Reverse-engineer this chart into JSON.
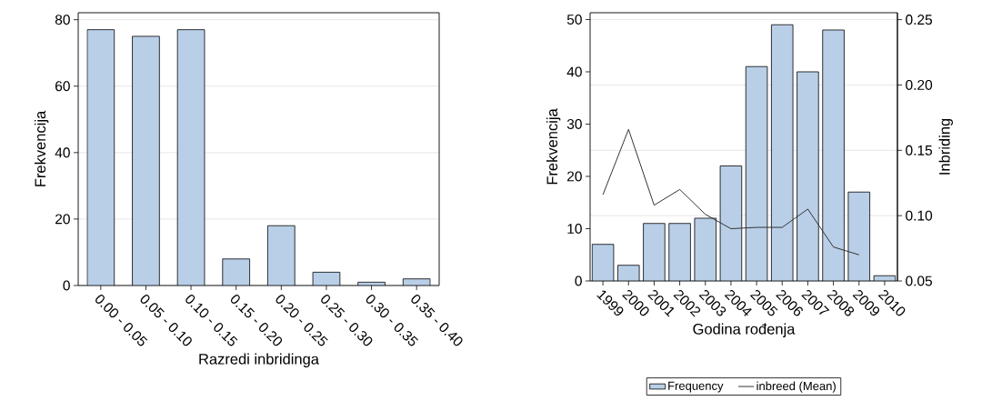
{
  "chart_data": [
    {
      "type": "bar",
      "xlabel": "Razredi inbridinga",
      "ylabel": "Frekvencija",
      "categories": [
        "0.00 - 0.05",
        "0.05 - 0.10",
        "0.10 - 0.15",
        "0.15 - 0.20",
        "0.20 - 0.25",
        "0.25 - 0.30",
        "0.30 - 0.35",
        "0.35 - 0.40"
      ],
      "values": [
        77,
        75,
        77,
        8,
        18,
        4,
        1,
        2
      ],
      "color": "#b9cfe8",
      "ylim": [
        0,
        82.1
      ],
      "yticks": [
        0,
        20,
        40,
        60,
        80
      ],
      "grid": "y"
    },
    {
      "type": "bar",
      "xlabel": "Godina rođenja",
      "ylabel": "Frekvencija",
      "y2label": "Inbriding",
      "categories": [
        "1999",
        "2000",
        "2001",
        "2002",
        "2003",
        "2004",
        "2005",
        "2006",
        "2007",
        "2008",
        "2009",
        "2010"
      ],
      "series": [
        {
          "name": "Frequency",
          "color": "#b9cfe8",
          "values": [
            7,
            3,
            11,
            11,
            12,
            22,
            41,
            49,
            40,
            48,
            17,
            1
          ]
        },
        {
          "name": "inbreed (Mean)",
          "type": "line",
          "axis": "y2",
          "color": "#333333",
          "values": [
            0.116,
            0.166,
            0.108,
            0.12,
            0.101,
            0.09,
            0.091,
            0.091,
            0.105,
            0.076,
            0.07,
            null
          ]
        }
      ],
      "ylim": [
        0,
        51.3
      ],
      "yticks": [
        0,
        10,
        20,
        30,
        40,
        50
      ],
      "y2lim": [
        0.05,
        0.2553
      ],
      "y2ticks": [
        {
          "value": 0.05,
          "label": "0.05"
        },
        {
          "value": 0.1,
          "label": "0.10"
        },
        {
          "value": 0.15,
          "label": "0.15"
        },
        {
          "value": 0.2,
          "label": "0.20"
        },
        {
          "value": 0.25,
          "label": "0.25"
        }
      ],
      "grid": "y2",
      "legend": "bottom",
      "marker": "none"
    }
  ]
}
